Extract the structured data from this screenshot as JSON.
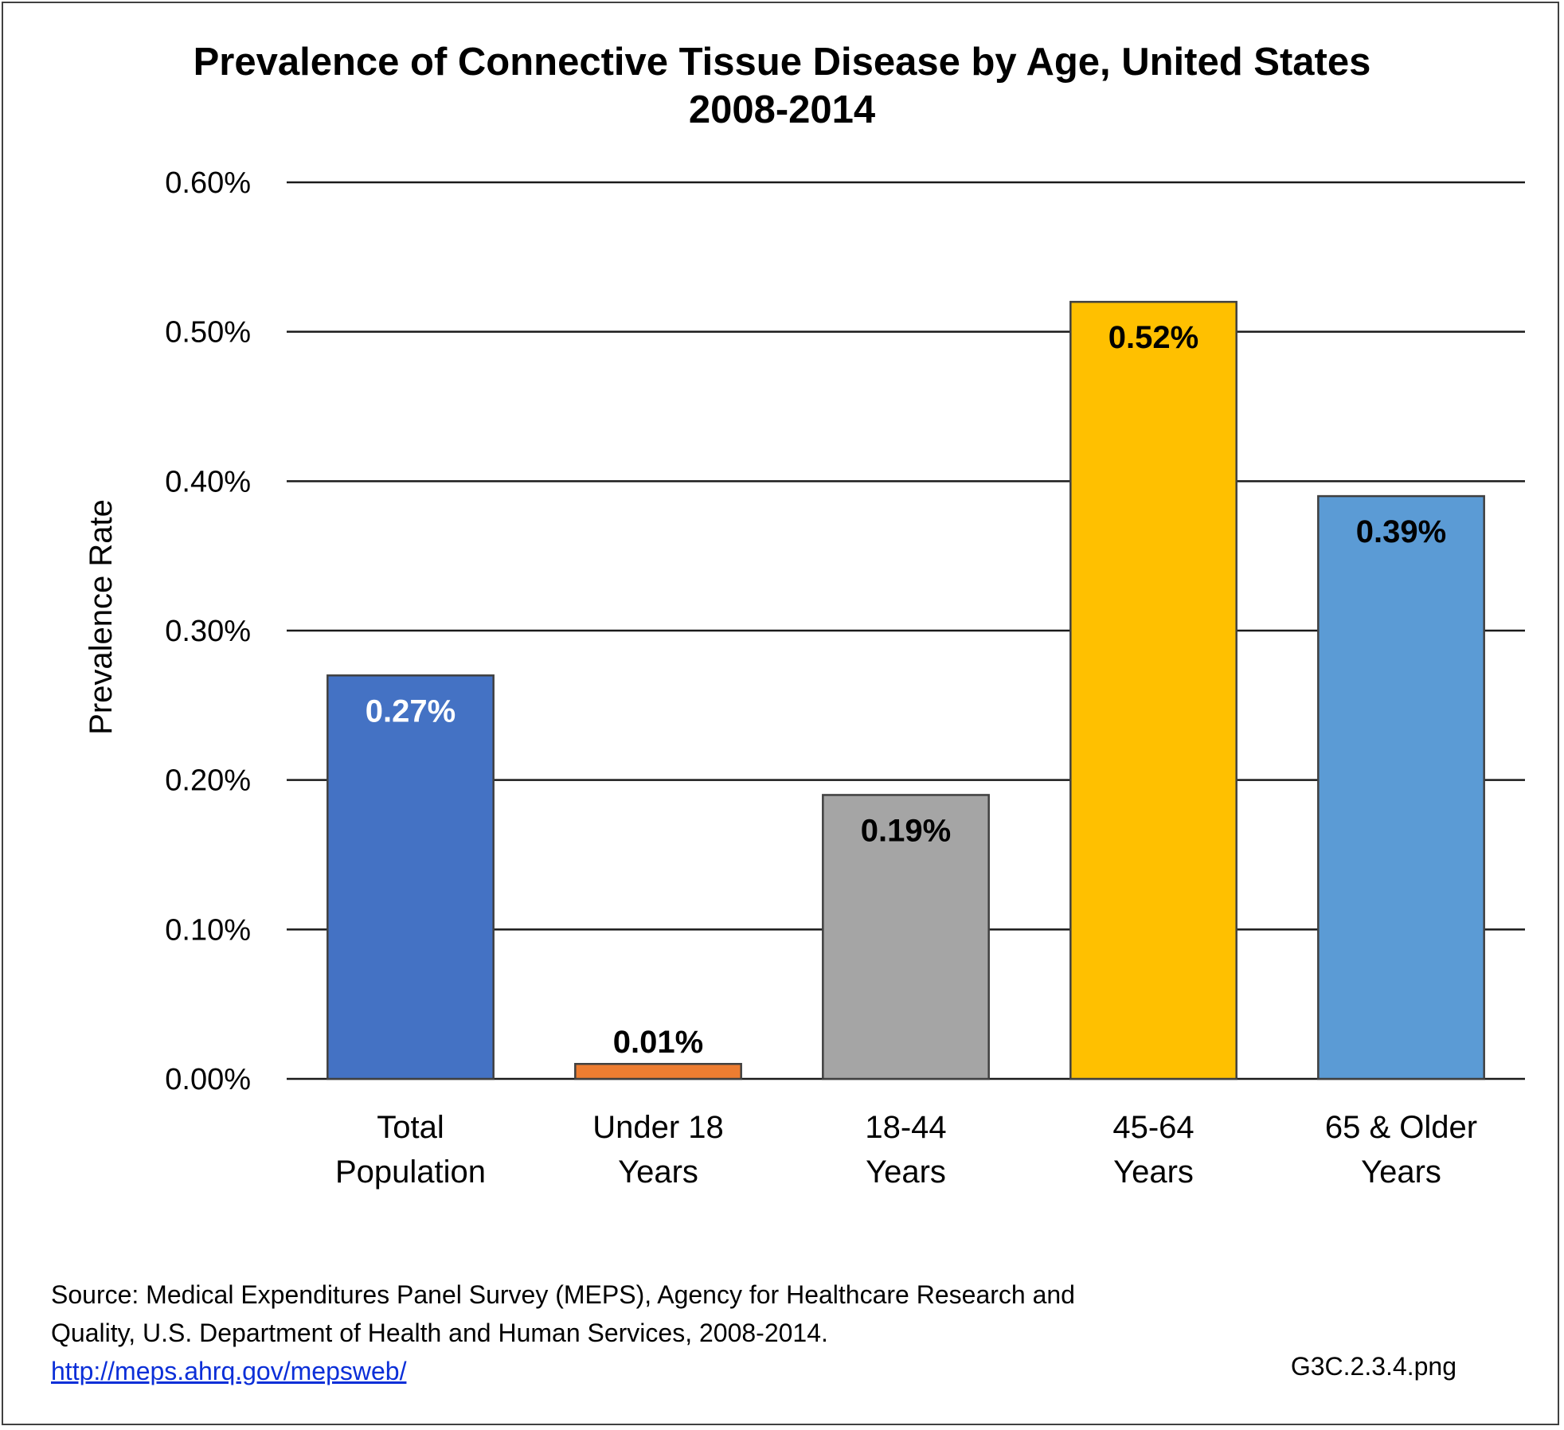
{
  "chart_data": {
    "type": "bar",
    "title": [
      "Prevalence of Connective Tissue Disease by Age, United States",
      "2008-2014"
    ],
    "xlabel": "",
    "ylabel": "Prevalence Rate",
    "categories": [
      [
        "Total",
        "Population"
      ],
      [
        "Under 18",
        "Years"
      ],
      [
        "18-44",
        "Years"
      ],
      [
        "45-64",
        "Years"
      ],
      [
        "65 & Older",
        "Years"
      ]
    ],
    "values": [
      0.27,
      0.01,
      0.19,
      0.52,
      0.39
    ],
    "data_labels": [
      "0.27%",
      "0.01%",
      "0.19%",
      "0.52%",
      "0.39%"
    ],
    "bar_colors": [
      "#4472c4",
      "#ed7d31",
      "#a5a5a5",
      "#ffc000",
      "#5b9bd5"
    ],
    "label_colors": [
      "#ffffff",
      "#000000",
      "#000000",
      "#000000",
      "#000000"
    ],
    "label_positions": [
      "inside-end",
      "outside-end",
      "inside-end",
      "inside-end",
      "inside-end"
    ],
    "ylim": [
      0,
      0.6
    ],
    "yticks": [
      0,
      0.1,
      0.2,
      0.3,
      0.4,
      0.5,
      0.6
    ],
    "ytick_labels": [
      "0.00%",
      "0.10%",
      "0.20%",
      "0.30%",
      "0.40%",
      "0.50%",
      "0.60%"
    ],
    "grid": true,
    "legend": "none"
  },
  "footer": {
    "source_lines": [
      "Source: Medical Expenditures Panel Survey (MEPS), Agency for Healthcare Research and",
      "Quality, U.S. Department of Health and Human Services, 2008-2014."
    ],
    "url": "http://meps.ahrq.gov/mepsweb/",
    "file_ref": "G3C.2.3.4.png"
  }
}
